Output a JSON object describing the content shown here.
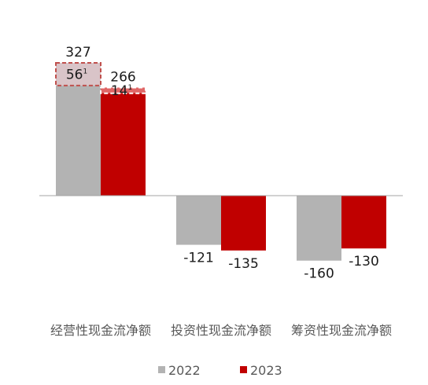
{
  "chart_data": {
    "type": "bar",
    "categories": [
      "经营性现金流净额",
      "投资性现金流净额",
      "筹资性现金流净额"
    ],
    "series": [
      {
        "name": "2022",
        "values": [
          327,
          -121,
          -160
        ],
        "color": "#b3b3b3"
      },
      {
        "name": "2023",
        "values": [
          266,
          -135,
          -130
        ],
        "color": "#c00000"
      }
    ],
    "annotations": [
      {
        "series": "2022",
        "category": "经营性现金流净额",
        "value": 56,
        "text": "56",
        "sup": "1",
        "fill": "#d9c4c8",
        "border": "#c0504d"
      },
      {
        "series": "2023",
        "category": "经营性现金流净额",
        "value": 14,
        "text": "14",
        "sup": "1",
        "fill": "#e06666",
        "border": "#ffffff"
      }
    ],
    "ylim": [
      -200,
      400
    ],
    "legend": "bottom",
    "grid": false
  }
}
